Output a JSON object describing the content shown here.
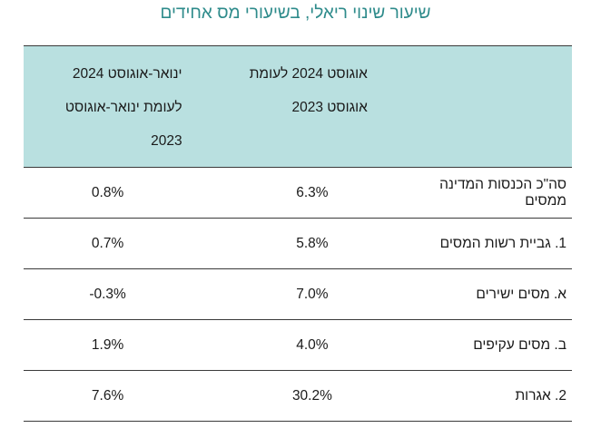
{
  "title": "שיעור שינוי ריאלי, בשיעורי מס אחידים",
  "table": {
    "headers": {
      "label": "",
      "aug": "אוגוסט 2024 לעומת אוגוסט 2023",
      "jan": "ינואר-אוגוסט 2024 לעומת ינואר-אוגוסט 2023"
    },
    "rows": [
      {
        "label": "סה\"כ הכנסות המדינה ממסים",
        "aug": "6.3%",
        "jan": "0.8%"
      },
      {
        "label": "1. גביית רשות המסים",
        "aug": "5.8%",
        "jan": "0.7%"
      },
      {
        "label": "א. מסים ישירים",
        "aug": "7.0%",
        "jan": "-0.3%"
      },
      {
        "label": "ב. מסים עקיפים",
        "aug": "4.0%",
        "jan": "1.9%"
      },
      {
        "label": "2. אגרות",
        "aug": "30.2%",
        "jan": "7.6%"
      }
    ]
  }
}
